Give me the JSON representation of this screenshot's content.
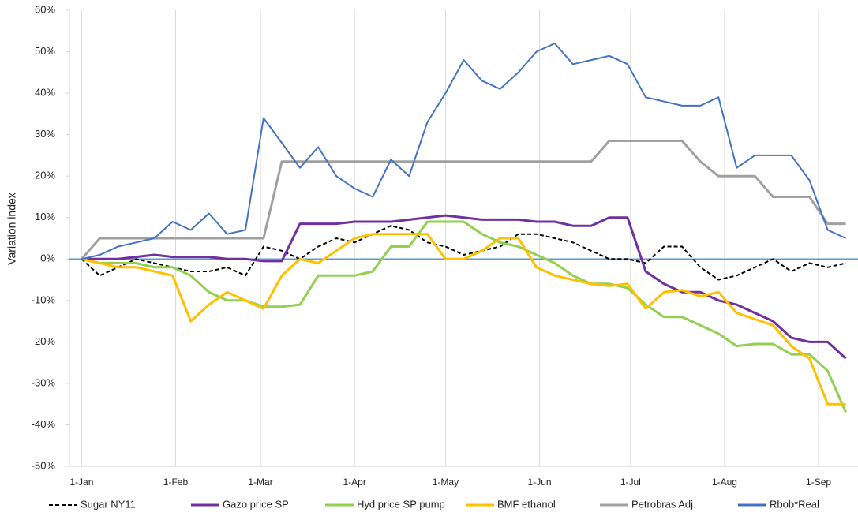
{
  "chart_data": {
    "type": "line",
    "y_label": "Variation index",
    "x": [
      0,
      6,
      12,
      18,
      24,
      30,
      36,
      42,
      48,
      54,
      60,
      66,
      72,
      78,
      84,
      90,
      96,
      102,
      108,
      114,
      120,
      126,
      132,
      138,
      144,
      150,
      156,
      162,
      168,
      174,
      180,
      186,
      192,
      198,
      204,
      210,
      216,
      222,
      228,
      234,
      240,
      246,
      252
    ],
    "xlim": [
      -4,
      256
    ],
    "xticks": [
      {
        "value": 0,
        "label": "1-Jan"
      },
      {
        "value": 31,
        "label": "1-Feb"
      },
      {
        "value": 59,
        "label": "1-Mar"
      },
      {
        "value": 90,
        "label": "1-Apr"
      },
      {
        "value": 120,
        "label": "1-May"
      },
      {
        "value": 151,
        "label": "1-Jun"
      },
      {
        "value": 181,
        "label": "1-Jul"
      },
      {
        "value": 212,
        "label": "1-Aug"
      },
      {
        "value": 243,
        "label": "1-Sep"
      }
    ],
    "ylim": [
      -50,
      60
    ],
    "yticks": [
      {
        "value": -50,
        "label": "-50%"
      },
      {
        "value": -40,
        "label": "-40%"
      },
      {
        "value": -30,
        "label": "-30%"
      },
      {
        "value": -20,
        "label": "-20%"
      },
      {
        "value": -10,
        "label": "-10%"
      },
      {
        "value": 0,
        "label": "0%"
      },
      {
        "value": 10,
        "label": "10%"
      },
      {
        "value": 20,
        "label": "20%"
      },
      {
        "value": 30,
        "label": "30%"
      },
      {
        "value": 40,
        "label": "40%"
      },
      {
        "value": 50,
        "label": "50%"
      },
      {
        "value": 60,
        "label": "60%"
      }
    ],
    "grid": "x",
    "legend": "bottom",
    "series": [
      {
        "name": "Sugar NY11",
        "color": "#000000",
        "dash": true,
        "values": [
          0,
          -4,
          -2,
          0,
          -1,
          -2,
          -3,
          -3,
          -2,
          -4,
          3,
          2,
          0,
          3,
          5,
          4,
          6,
          8,
          7,
          4,
          3,
          1,
          2,
          3,
          6,
          6,
          5,
          4,
          2,
          0,
          0,
          -1,
          3,
          3,
          -2,
          -5,
          -4,
          -2,
          0,
          -3,
          -1,
          -2,
          -1
        ]
      },
      {
        "name": "Gazo price SP",
        "color": "#7030a0",
        "values": [
          0,
          0,
          0,
          0.5,
          1,
          0.5,
          0.5,
          0.5,
          0,
          0,
          -0.5,
          -0.5,
          8.5,
          8.5,
          8.5,
          9,
          9,
          9,
          9.5,
          10,
          10.5,
          10,
          9.5,
          9.5,
          9.5,
          9,
          9,
          8,
          8,
          10,
          10,
          -3,
          -6,
          -8,
          -8,
          -10,
          -11,
          -13,
          -15,
          -19,
          -20,
          -20,
          -24
        ]
      },
      {
        "name": "Hyd price SP pump",
        "color": "#92d050",
        "values": [
          0,
          -1,
          -1,
          -1,
          -2,
          -2,
          -4,
          -8,
          -10,
          -10,
          -11.5,
          -11.5,
          -11,
          -4,
          -4,
          -4,
          -3,
          3,
          3,
          9,
          9,
          9,
          6,
          4,
          3,
          1,
          -1,
          -4,
          -6,
          -6,
          -7,
          -11,
          -14,
          -14,
          -16,
          -18,
          -21,
          -20.5,
          -20.5,
          -23,
          -23,
          -27,
          -37
        ]
      },
      {
        "name": "BMF ethanol",
        "color": "#ffc000",
        "values": [
          0,
          -1,
          -2,
          -2,
          -3,
          -4,
          -15,
          -11,
          -8,
          -10,
          -12,
          -4,
          0,
          -1,
          2,
          5,
          6,
          6,
          6,
          6,
          0,
          0,
          2,
          5,
          5,
          -2,
          -4,
          -5,
          -6,
          -6.5,
          -6,
          -12,
          -8,
          -7.5,
          -9,
          -8,
          -13,
          -14.5,
          -16,
          -21,
          -24,
          -35,
          -35
        ]
      },
      {
        "name": "Petrobras Adj.",
        "color": "#a0a0a0",
        "values": [
          0,
          5,
          5,
          5,
          5,
          5,
          5,
          5,
          5,
          5,
          5,
          23.5,
          23.5,
          23.5,
          23.5,
          23.5,
          23.5,
          23.5,
          23.5,
          23.5,
          23.5,
          23.5,
          23.5,
          23.5,
          23.5,
          23.5,
          23.5,
          23.5,
          23.5,
          28.5,
          28.5,
          28.5,
          28.5,
          28.5,
          23.5,
          20,
          20,
          20,
          15,
          15,
          15,
          8.5,
          8.5
        ]
      },
      {
        "name": "Rbob*Real",
        "color": "#4472c4",
        "thin": true,
        "values": [
          0,
          1,
          3,
          4,
          5,
          9,
          7,
          11,
          6,
          7,
          34,
          28,
          22,
          27,
          20,
          17,
          15,
          24,
          20,
          33,
          40,
          48,
          43,
          41,
          45,
          50,
          52,
          47,
          48,
          49,
          47,
          39,
          38,
          37,
          37,
          39,
          22,
          25,
          25,
          25,
          19,
          7,
          5
        ]
      }
    ]
  }
}
